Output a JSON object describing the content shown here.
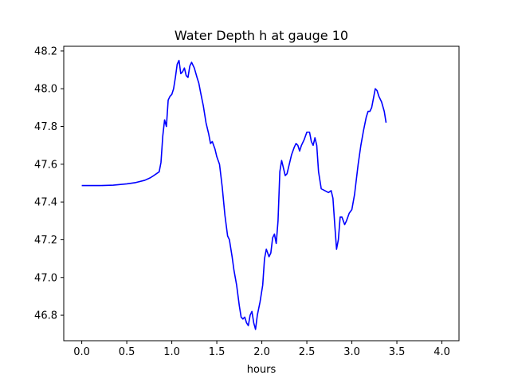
{
  "chart_data": {
    "type": "line",
    "title": "Water Depth h at gauge 10",
    "xlabel": "hours",
    "ylabel": "",
    "xlim": [
      -0.2,
      4.19
    ],
    "ylim": [
      46.665,
      48.225
    ],
    "grid": false,
    "legend": "none",
    "line_color": "#0000ff",
    "x_ticks": [
      0.0,
      0.5,
      1.0,
      1.5,
      2.0,
      2.5,
      3.0,
      3.5,
      4.0
    ],
    "x_tick_labels": [
      "0.0",
      "0.5",
      "1.0",
      "1.5",
      "2.0",
      "2.5",
      "3.0",
      "3.5",
      "4.0"
    ],
    "y_ticks": [
      46.8,
      47.0,
      47.2,
      47.4,
      47.6,
      47.8,
      48.0,
      48.2
    ],
    "y_tick_labels": [
      "46.8",
      "47.0",
      "47.2",
      "47.4",
      "47.6",
      "47.8",
      "48.0",
      "48.2"
    ],
    "series": [
      {
        "points": [
          [
            0.0,
            47.487
          ],
          [
            0.2,
            47.487
          ],
          [
            0.35,
            47.489
          ],
          [
            0.5,
            47.496
          ],
          [
            0.6,
            47.503
          ],
          [
            0.7,
            47.515
          ],
          [
            0.76,
            47.528
          ],
          [
            0.8,
            47.54
          ],
          [
            0.86,
            47.56
          ],
          [
            0.88,
            47.61
          ],
          [
            0.9,
            47.75
          ],
          [
            0.92,
            47.835
          ],
          [
            0.94,
            47.8
          ],
          [
            0.96,
            47.94
          ],
          [
            0.98,
            47.96
          ],
          [
            1.0,
            47.97
          ],
          [
            1.02,
            48.0
          ],
          [
            1.04,
            48.06
          ],
          [
            1.06,
            48.13
          ],
          [
            1.08,
            48.15
          ],
          [
            1.1,
            48.08
          ],
          [
            1.12,
            48.09
          ],
          [
            1.14,
            48.11
          ],
          [
            1.16,
            48.07
          ],
          [
            1.18,
            48.06
          ],
          [
            1.2,
            48.12
          ],
          [
            1.22,
            48.14
          ],
          [
            1.25,
            48.11
          ],
          [
            1.28,
            48.06
          ],
          [
            1.3,
            48.03
          ],
          [
            1.32,
            47.98
          ],
          [
            1.35,
            47.91
          ],
          [
            1.38,
            47.82
          ],
          [
            1.41,
            47.76
          ],
          [
            1.43,
            47.71
          ],
          [
            1.45,
            47.72
          ],
          [
            1.48,
            47.68
          ],
          [
            1.5,
            47.64
          ],
          [
            1.53,
            47.6
          ],
          [
            1.56,
            47.48
          ],
          [
            1.59,
            47.33
          ],
          [
            1.62,
            47.22
          ],
          [
            1.64,
            47.2
          ],
          [
            1.67,
            47.11
          ],
          [
            1.69,
            47.04
          ],
          [
            1.72,
            46.96
          ],
          [
            1.75,
            46.85
          ],
          [
            1.77,
            46.79
          ],
          [
            1.79,
            46.78
          ],
          [
            1.81,
            46.79
          ],
          [
            1.83,
            46.76
          ],
          [
            1.85,
            46.745
          ],
          [
            1.87,
            46.8
          ],
          [
            1.89,
            46.82
          ],
          [
            1.91,
            46.76
          ],
          [
            1.93,
            46.725
          ],
          [
            1.95,
            46.8
          ],
          [
            1.98,
            46.87
          ],
          [
            2.01,
            46.96
          ],
          [
            2.03,
            47.1
          ],
          [
            2.05,
            47.15
          ],
          [
            2.08,
            47.11
          ],
          [
            2.1,
            47.13
          ],
          [
            2.12,
            47.21
          ],
          [
            2.14,
            47.23
          ],
          [
            2.16,
            47.18
          ],
          [
            2.18,
            47.3
          ],
          [
            2.2,
            47.56
          ],
          [
            2.22,
            47.62
          ],
          [
            2.24,
            47.58
          ],
          [
            2.26,
            47.54
          ],
          [
            2.28,
            47.55
          ],
          [
            2.3,
            47.59
          ],
          [
            2.33,
            47.65
          ],
          [
            2.36,
            47.69
          ],
          [
            2.38,
            47.71
          ],
          [
            2.4,
            47.7
          ],
          [
            2.42,
            47.67
          ],
          [
            2.44,
            47.7
          ],
          [
            2.47,
            47.73
          ],
          [
            2.5,
            47.77
          ],
          [
            2.53,
            47.77
          ],
          [
            2.55,
            47.72
          ],
          [
            2.57,
            47.7
          ],
          [
            2.59,
            47.74
          ],
          [
            2.61,
            47.7
          ],
          [
            2.63,
            47.56
          ],
          [
            2.66,
            47.47
          ],
          [
            2.7,
            47.46
          ],
          [
            2.74,
            47.45
          ],
          [
            2.77,
            47.46
          ],
          [
            2.79,
            47.42
          ],
          [
            2.81,
            47.28
          ],
          [
            2.83,
            47.15
          ],
          [
            2.85,
            47.2
          ],
          [
            2.87,
            47.32
          ],
          [
            2.89,
            47.32
          ],
          [
            2.92,
            47.28
          ],
          [
            2.94,
            47.3
          ],
          [
            2.97,
            47.34
          ],
          [
            3.0,
            47.36
          ],
          [
            3.03,
            47.44
          ],
          [
            3.07,
            47.6
          ],
          [
            3.1,
            47.7
          ],
          [
            3.13,
            47.78
          ],
          [
            3.16,
            47.85
          ],
          [
            3.18,
            47.88
          ],
          [
            3.2,
            47.88
          ],
          [
            3.22,
            47.9
          ],
          [
            3.24,
            47.95
          ],
          [
            3.26,
            48.0
          ],
          [
            3.28,
            47.99
          ],
          [
            3.3,
            47.96
          ],
          [
            3.33,
            47.93
          ],
          [
            3.36,
            47.88
          ],
          [
            3.38,
            47.82
          ]
        ]
      }
    ]
  }
}
